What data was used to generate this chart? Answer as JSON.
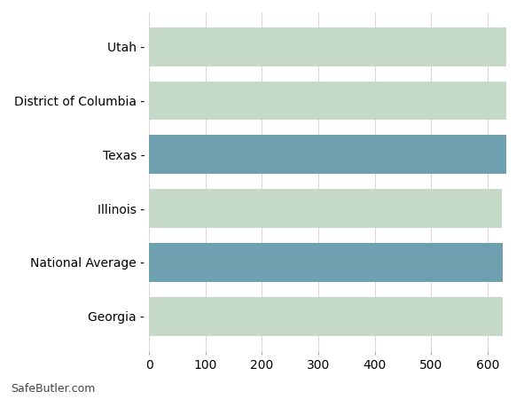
{
  "categories": [
    "Georgia",
    "National Average",
    "Illinois",
    "Texas",
    "District of Columbia",
    "Utah"
  ],
  "values": [
    627,
    626,
    625,
    632,
    632,
    633
  ],
  "bar_colors": [
    "#c5d9c8",
    "#6fa0b0",
    "#c5d9c8",
    "#6fa0b0",
    "#c5d9c8",
    "#c5d9c8"
  ],
  "xlim": [
    0,
    650
  ],
  "xticks": [
    0,
    100,
    200,
    300,
    400,
    500,
    600
  ],
  "background_color": "#ffffff",
  "grid_color": "#d8d8d8",
  "watermark": "SafeButler.com",
  "bar_height": 0.72,
  "label_fontsize": 10,
  "tick_fontsize": 10
}
